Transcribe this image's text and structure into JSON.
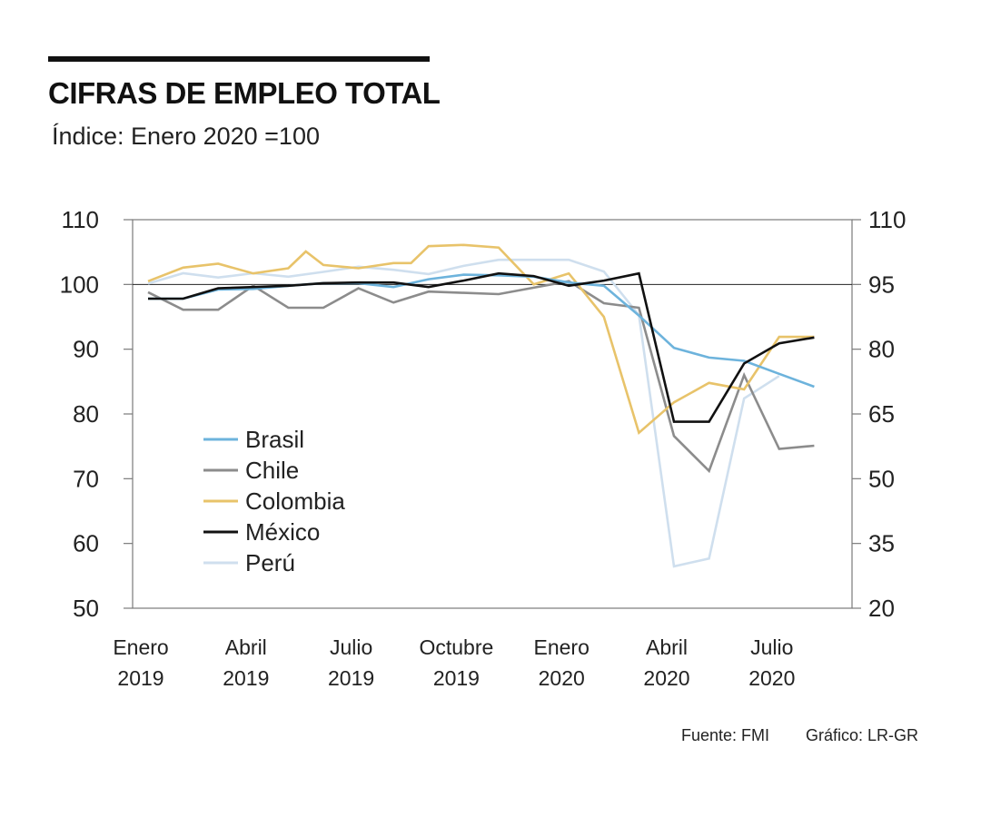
{
  "header": {
    "title": "CIFRAS DE EMPLEO TOTAL",
    "subtitle": "Índice: Enero 2020 =100"
  },
  "footer": {
    "source": "Fuente: FMI",
    "credit": "Gráfico: LR-GR"
  },
  "chart_data": {
    "type": "line",
    "title": "CIFRAS DE EMPLEO TOTAL",
    "subtitle": "Índice: Enero 2020 =100",
    "x": [
      "2019-01",
      "2019-02",
      "2019-03",
      "2019-04",
      "2019-05",
      "2019-06",
      "2019-07",
      "2019-08",
      "2019-09",
      "2019-10",
      "2019-11",
      "2019-12",
      "2020-01",
      "2020-02",
      "2020-03",
      "2020-04",
      "2020-05",
      "2020-06",
      "2020-07",
      "2020-08"
    ],
    "x_ticks": [
      {
        "index": 0,
        "line1": "Enero",
        "line2": "2019"
      },
      {
        "index": 3,
        "line1": "Abril",
        "line2": "2019"
      },
      {
        "index": 6,
        "line1": "Julio",
        "line2": "2019"
      },
      {
        "index": 9,
        "line1": "Octubre",
        "line2": "2019"
      },
      {
        "index": 12,
        "line1": "Enero",
        "line2": "2020"
      },
      {
        "index": 15,
        "line1": "Abril",
        "line2": "2020"
      },
      {
        "index": 18,
        "line1": "Julio",
        "line2": "2020"
      }
    ],
    "y_left": {
      "min": 50,
      "max": 110,
      "ticks": [
        "110",
        "100",
        "90",
        "80",
        "70",
        "60",
        "50"
      ]
    },
    "y_right": {
      "min": 20,
      "max": 110,
      "ticks": [
        "110",
        "95",
        "80",
        "65",
        "50",
        "35",
        "20"
      ],
      "note": "Perú plotted on right axis"
    },
    "reference_line": 100,
    "series": [
      {
        "name": "Brasil",
        "color": "#6db3dc",
        "axis": "left",
        "x": [
          0,
          1,
          2,
          3,
          4,
          5,
          6,
          7,
          8,
          9,
          10,
          11,
          12,
          13,
          14,
          15,
          16,
          17,
          18,
          19
        ],
        "y": [
          97.8,
          97.8,
          99.2,
          99.3,
          99.8,
          100.2,
          100.2,
          99.6,
          100.8,
          101.5,
          101.4,
          101.2,
          100.3,
          99.8,
          95.2,
          90.2,
          88.7,
          88.2,
          86.2,
          84.2
        ]
      },
      {
        "name": "Chile",
        "color": "#8c8c8c",
        "axis": "left",
        "x": [
          0,
          1,
          2,
          3,
          4,
          5,
          6,
          7,
          8,
          9,
          10,
          11,
          12,
          13,
          14,
          15,
          16,
          17,
          18,
          19
        ],
        "y": [
          98.8,
          96.1,
          96.1,
          99.8,
          96.4,
          96.4,
          99.4,
          97.2,
          98.9,
          98.7,
          98.5,
          99.5,
          100.5,
          97.1,
          96.4,
          76.6,
          71.2,
          86.0,
          74.6,
          75.1
        ]
      },
      {
        "name": "Colombia",
        "color": "#e8c36a",
        "axis": "left",
        "x": [
          0,
          1,
          2,
          3,
          4,
          4.5,
          5,
          6,
          7,
          7.5,
          8,
          9,
          10,
          11,
          12,
          13,
          14,
          15,
          16,
          17,
          18,
          19
        ],
        "y": [
          100.5,
          102.6,
          103.2,
          101.7,
          102.5,
          105.1,
          103.0,
          102.5,
          103.3,
          103.3,
          105.9,
          106.1,
          105.7,
          100.0,
          101.7,
          95.0,
          77.1,
          81.8,
          84.8,
          83.8,
          91.9,
          91.9
        ]
      },
      {
        "name": "México",
        "color": "#111111",
        "axis": "left",
        "x": [
          0,
          1,
          2,
          3,
          4,
          5,
          6,
          7,
          8,
          9,
          10,
          11,
          12,
          13,
          14,
          15,
          16,
          17,
          18,
          19
        ],
        "y": [
          97.8,
          97.8,
          99.4,
          99.6,
          99.8,
          100.2,
          100.3,
          100.3,
          99.6,
          100.6,
          101.7,
          101.3,
          99.8,
          100.6,
          101.7,
          78.8,
          78.8,
          87.8,
          90.9,
          91.8
        ]
      },
      {
        "name": "Perú",
        "color": "#cfdfee",
        "axis": "right",
        "x": [
          0,
          1,
          2,
          3,
          4,
          5,
          6,
          7,
          8,
          9,
          10,
          11,
          12,
          13,
          14,
          15,
          16,
          17,
          18
        ],
        "y": [
          95.2,
          97.6,
          96.6,
          97.6,
          96.8,
          97.9,
          99.1,
          98.4,
          97.4,
          99.3,
          100.7,
          100.7,
          100.7,
          98.0,
          87.9,
          29.7,
          31.5,
          68.6,
          73.8
        ]
      }
    ],
    "legend": {
      "position": "center-left",
      "entries": [
        "Brasil",
        "Chile",
        "Colombia",
        "México",
        "Perú"
      ]
    }
  }
}
